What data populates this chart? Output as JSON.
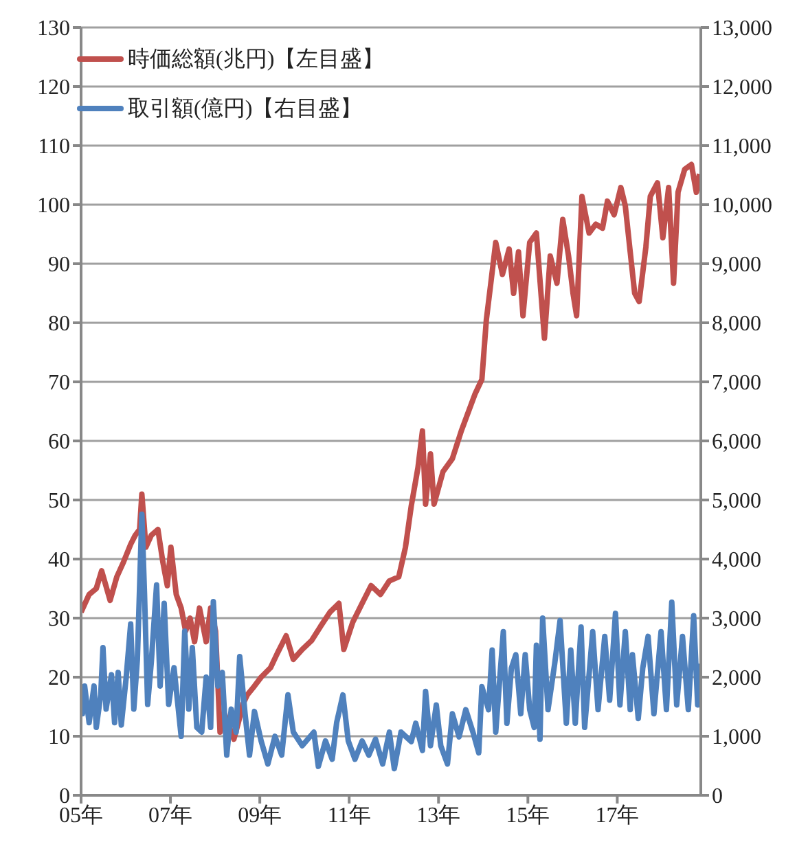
{
  "chart_data": {
    "type": "line",
    "series": [
      {
        "name": "時価総額(兆円)【左目盛】",
        "color": "#c0504d",
        "x": [
          5.0,
          5.18,
          5.34,
          5.46,
          5.65,
          5.8,
          5.95,
          6.11,
          6.21,
          6.31,
          6.36,
          6.45,
          6.57,
          6.72,
          6.83,
          6.93,
          7.01,
          7.13,
          7.24,
          7.34,
          7.44,
          7.54,
          7.65,
          7.8,
          7.9,
          8.01,
          8.11,
          8.21,
          8.42,
          8.52,
          8.62,
          8.72,
          8.88,
          9.03,
          9.24,
          9.39,
          9.59,
          9.75,
          9.95,
          10.16,
          10.36,
          10.57,
          10.77,
          10.88,
          11.08,
          11.29,
          11.49,
          11.7,
          11.9,
          12.11,
          12.26,
          12.39,
          12.54,
          12.64,
          12.71,
          12.82,
          12.9,
          13.1,
          13.31,
          13.51,
          13.82,
          13.97,
          14.07,
          14.17,
          14.28,
          14.43,
          14.58,
          14.68,
          14.79,
          14.89,
          15.04,
          15.19,
          15.3,
          15.37,
          15.5,
          15.65,
          15.78,
          15.91,
          16.01,
          16.09,
          16.21,
          16.37,
          16.52,
          16.67,
          16.78,
          16.93,
          17.08,
          17.18,
          17.29,
          17.39,
          17.49,
          17.64,
          17.74,
          17.9,
          18.02,
          18.15,
          18.26,
          18.36,
          18.51,
          18.66,
          18.77,
          18.84
        ],
        "values": [
          31,
          34,
          35,
          38,
          33,
          37,
          39.5,
          42.5,
          44,
          45,
          51,
          42,
          44,
          45,
          39.5,
          35.5,
          42,
          34,
          31.7,
          27.8,
          30,
          26,
          31.7,
          26,
          31.7,
          27.8,
          10.7,
          13.8,
          9.5,
          12.3,
          15.4,
          17,
          18.5,
          20,
          21.6,
          24,
          27,
          23,
          24.7,
          26.2,
          28.6,
          31,
          32.5,
          24.7,
          29.3,
          32.5,
          35.5,
          34,
          36.3,
          37,
          42,
          49,
          55.5,
          61.7,
          49.3,
          57.8,
          49.3,
          54.8,
          57,
          61.7,
          68,
          70.4,
          80.5,
          86.7,
          93.6,
          88.2,
          92.5,
          85,
          92,
          81.2,
          93.6,
          95.2,
          84.3,
          77.4,
          91.3,
          86.7,
          97.5,
          91.3,
          85,
          81.2,
          101.4,
          95.2,
          96.7,
          96,
          100.6,
          98.3,
          102.9,
          99.8,
          92,
          85,
          83.6,
          92.8,
          101.4,
          103.7,
          94.4,
          102.9,
          86.7,
          102.1,
          106,
          106.8,
          102.1,
          105.2
        ]
      },
      {
        "name": "取引額(億円)【右目盛】",
        "color": "#4f81bd",
        "axis": "y2",
        "x": [
          5.0,
          5.03,
          5.08,
          5.18,
          5.29,
          5.34,
          5.44,
          5.49,
          5.56,
          5.68,
          5.75,
          5.83,
          5.9,
          6.01,
          6.11,
          6.18,
          6.26,
          6.36,
          6.42,
          6.49,
          6.57,
          6.69,
          6.77,
          6.86,
          6.96,
          7.08,
          7.24,
          7.32,
          7.41,
          7.49,
          7.59,
          7.7,
          7.8,
          7.9,
          7.96,
          8.06,
          8.16,
          8.26,
          8.36,
          8.47,
          8.55,
          8.67,
          8.77,
          8.88,
          9.03,
          9.18,
          9.34,
          9.49,
          9.63,
          9.75,
          9.95,
          10.21,
          10.31,
          10.47,
          10.62,
          10.72,
          10.86,
          10.98,
          11.13,
          11.29,
          11.44,
          11.59,
          11.75,
          11.9,
          12.01,
          12.16,
          12.39,
          12.49,
          12.64,
          12.71,
          12.82,
          12.95,
          13.05,
          13.2,
          13.31,
          13.46,
          13.61,
          13.77,
          13.9,
          13.97,
          14.12,
          14.2,
          14.28,
          14.45,
          14.53,
          14.63,
          14.73,
          14.84,
          14.94,
          15.04,
          15.14,
          15.19,
          15.27,
          15.33,
          15.45,
          15.6,
          15.72,
          15.86,
          15.96,
          16.06,
          16.19,
          16.27,
          16.45,
          16.57,
          16.72,
          16.83,
          16.96,
          17.06,
          17.18,
          17.29,
          17.34,
          17.47,
          17.57,
          17.69,
          17.82,
          17.98,
          18.1,
          18.22,
          18.33,
          18.46,
          18.59,
          18.71,
          18.8,
          18.85
        ],
        "values": [
          1690,
          1380,
          1850,
          1230,
          1850,
          1150,
          1700,
          2500,
          1460,
          2040,
          1230,
          2080,
          1190,
          2000,
          2900,
          1460,
          2300,
          4760,
          3400,
          1540,
          2240,
          3560,
          1850,
          3250,
          1540,
          2160,
          1000,
          2780,
          1460,
          2500,
          1150,
          1070,
          2000,
          1150,
          3280,
          1850,
          2080,
          680,
          1460,
          1070,
          2350,
          1380,
          680,
          1420,
          920,
          530,
          1000,
          680,
          1700,
          1070,
          840,
          1070,
          490,
          920,
          610,
          1230,
          1700,
          920,
          610,
          920,
          680,
          950,
          530,
          1070,
          450,
          1070,
          910,
          1220,
          760,
          1760,
          840,
          1530,
          840,
          530,
          1380,
          990,
          1450,
          1070,
          720,
          1840,
          1450,
          2460,
          1070,
          2770,
          1220,
          2150,
          2380,
          1380,
          2380,
          1450,
          1150,
          2540,
          950,
          3000,
          1450,
          2230,
          2960,
          1220,
          2460,
          1220,
          2850,
          1150,
          2770,
          1450,
          2690,
          1610,
          3080,
          1530,
          2770,
          1450,
          2380,
          1300,
          2150,
          2690,
          1380,
          2770,
          1450,
          3270,
          1530,
          2690,
          1450,
          3040,
          1530,
          2230
        ]
      }
    ],
    "xlim": [
      5,
      18.87
    ],
    "xticks": [
      {
        "value": 5,
        "label": "05年"
      },
      {
        "value": 7,
        "label": "07年"
      },
      {
        "value": 9,
        "label": "09年"
      },
      {
        "value": 11,
        "label": "11年"
      },
      {
        "value": 13,
        "label": "13年"
      },
      {
        "value": 15,
        "label": "15年"
      },
      {
        "value": 17,
        "label": "17年"
      }
    ],
    "ylim": [
      0,
      130
    ],
    "yticks": [
      0,
      10,
      20,
      30,
      40,
      50,
      60,
      70,
      80,
      90,
      100,
      110,
      120,
      130
    ],
    "y2lim": [
      0,
      13000
    ],
    "y2ticks": [
      0,
      {
        "value": 1000,
        "label": "1,000"
      },
      {
        "value": 2000,
        "label": "2,000"
      },
      {
        "value": 3000,
        "label": "3,000"
      },
      {
        "value": 4000,
        "label": "4,000"
      },
      {
        "value": 5000,
        "label": "5,000"
      },
      {
        "value": 6000,
        "label": "6,000"
      },
      {
        "value": 7000,
        "label": "7,000"
      },
      {
        "value": 8000,
        "label": "8,000"
      },
      {
        "value": 9000,
        "label": "9,000"
      },
      {
        "value": 10000,
        "label": "10,000"
      },
      {
        "value": 11000,
        "label": "11,000"
      },
      {
        "value": 12000,
        "label": "12,000"
      },
      {
        "value": 13000,
        "label": "13,000"
      }
    ],
    "grid": "y",
    "legend": "top left",
    "marker": "none",
    "line_style": "solid"
  }
}
